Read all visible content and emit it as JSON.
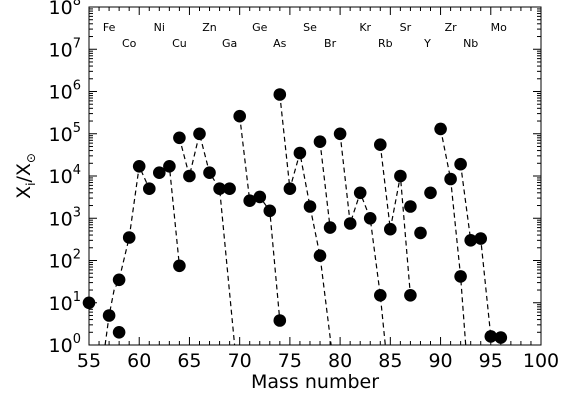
{
  "chart_data": {
    "type": "scatter",
    "title": "",
    "xlabel": "Mass number",
    "ylabel_main": "X",
    "ylabel_sub": "i",
    "ylabel_sep": "/X",
    "ylabel_sym": "⊙",
    "xlim": [
      55,
      100
    ],
    "ylim": [
      1,
      100000000
    ],
    "yscale": "log",
    "grid": false,
    "x_ticks": [
      55,
      60,
      65,
      70,
      75,
      80,
      85,
      90,
      95,
      100
    ],
    "y_ticks": [
      {
        "exp": 0,
        "base": "10",
        "sup": "0"
      },
      {
        "exp": 1,
        "base": "10",
        "sup": "1"
      },
      {
        "exp": 2,
        "base": "10",
        "sup": "2"
      },
      {
        "exp": 3,
        "base": "10",
        "sup": "3"
      },
      {
        "exp": 4,
        "base": "10",
        "sup": "4"
      },
      {
        "exp": 5,
        "base": "10",
        "sup": "5"
      },
      {
        "exp": 6,
        "base": "10",
        "sup": "6"
      },
      {
        "exp": 7,
        "base": "10",
        "sup": "7"
      },
      {
        "exp": 8,
        "base": "10",
        "sup": "8"
      }
    ],
    "element_labels": [
      {
        "text": "Fe",
        "x": 57,
        "row": "upper"
      },
      {
        "text": "Co",
        "x": 59,
        "row": "lower"
      },
      {
        "text": "Ni",
        "x": 62,
        "row": "upper"
      },
      {
        "text": "Cu",
        "x": 64,
        "row": "lower"
      },
      {
        "text": "Zn",
        "x": 67,
        "row": "upper"
      },
      {
        "text": "Ga",
        "x": 69,
        "row": "lower"
      },
      {
        "text": "Ge",
        "x": 72,
        "row": "upper"
      },
      {
        "text": "As",
        "x": 74,
        "row": "lower"
      },
      {
        "text": "Se",
        "x": 77,
        "row": "upper"
      },
      {
        "text": "Br",
        "x": 79,
        "row": "lower"
      },
      {
        "text": "Kr",
        "x": 82.5,
        "row": "upper"
      },
      {
        "text": "Rb",
        "x": 84.5,
        "row": "lower"
      },
      {
        "text": "Sr",
        "x": 86.5,
        "row": "upper"
      },
      {
        "text": "Y",
        "x": 88.7,
        "row": "lower"
      },
      {
        "text": "Zr",
        "x": 91,
        "row": "upper"
      },
      {
        "text": "Nb",
        "x": 93,
        "row": "lower"
      },
      {
        "text": "Mo",
        "x": 95.8,
        "row": "upper"
      }
    ],
    "points": [
      [
        55,
        10
      ],
      [
        57,
        5
      ],
      [
        58,
        2
      ],
      [
        58,
        35
      ],
      [
        59,
        350
      ],
      [
        60,
        17000
      ],
      [
        61,
        5000
      ],
      [
        62,
        12000
      ],
      [
        63,
        17000
      ],
      [
        64,
        80000
      ],
      [
        64,
        75
      ],
      [
        65,
        10000
      ],
      [
        66,
        100000
      ],
      [
        67,
        12000
      ],
      [
        68,
        5000
      ],
      [
        69,
        5000
      ],
      [
        70,
        260000
      ],
      [
        71,
        2600
      ],
      [
        72,
        3200
      ],
      [
        73,
        1500
      ],
      [
        74,
        850000
      ],
      [
        74,
        3.8
      ],
      [
        75,
        5000
      ],
      [
        76,
        35000
      ],
      [
        77,
        1900
      ],
      [
        78,
        65000
      ],
      [
        78,
        130
      ],
      [
        79,
        600
      ],
      [
        80,
        100000
      ],
      [
        81,
        750
      ],
      [
        82,
        4000
      ],
      [
        83,
        1000
      ],
      [
        84,
        55000
      ],
      [
        84,
        15
      ],
      [
        85,
        550
      ],
      [
        86,
        10000
      ],
      [
        87,
        1900
      ],
      [
        87,
        15
      ],
      [
        88,
        450
      ],
      [
        89,
        4000
      ],
      [
        90,
        130000
      ],
      [
        91,
        8500
      ],
      [
        92,
        19000
      ],
      [
        92,
        42
      ],
      [
        93,
        300
      ],
      [
        94,
        330
      ],
      [
        95,
        1.6
      ],
      [
        96,
        1.5
      ]
    ],
    "dashed_chains": [
      [
        [
          56.6,
          1
        ],
        [
          57,
          5
        ],
        [
          57.5,
          20
        ],
        [
          58,
          35
        ],
        [
          59,
          350
        ],
        [
          60,
          17000
        ],
        [
          61,
          5000
        ]
      ],
      [
        [
          62,
          12000
        ],
        [
          63,
          17000
        ],
        [
          64,
          75
        ]
      ],
      [
        [
          64,
          80000
        ],
        [
          65,
          10000
        ],
        [
          66,
          100000
        ],
        [
          67,
          12000
        ],
        [
          68,
          5000
        ],
        [
          69.5,
          1
        ]
      ],
      [
        [
          70,
          260000
        ],
        [
          71,
          2600
        ],
        [
          72,
          3200
        ],
        [
          73,
          1500
        ],
        [
          74,
          3.8
        ]
      ],
      [
        [
          74,
          850000
        ],
        [
          75,
          5000
        ],
        [
          76,
          35000
        ],
        [
          77,
          1900
        ],
        [
          78,
          130
        ],
        [
          79.1,
          1
        ]
      ],
      [
        [
          78,
          65000
        ],
        [
          79,
          600
        ]
      ],
      [
        [
          80,
          100000
        ],
        [
          81,
          750
        ],
        [
          82,
          4000
        ],
        [
          83,
          1000
        ],
        [
          84,
          15
        ],
        [
          84.5,
          1
        ]
      ],
      [
        [
          84,
          55000
        ],
        [
          85,
          550
        ],
        [
          86,
          10000
        ],
        [
          87,
          15
        ]
      ],
      [
        [
          90,
          130000
        ],
        [
          91,
          8500
        ],
        [
          92,
          42
        ],
        [
          92.5,
          1
        ]
      ],
      [
        [
          92,
          19000
        ],
        [
          93,
          300
        ],
        [
          94,
          330
        ],
        [
          95,
          1.6
        ],
        [
          96,
          1.5
        ]
      ]
    ]
  }
}
